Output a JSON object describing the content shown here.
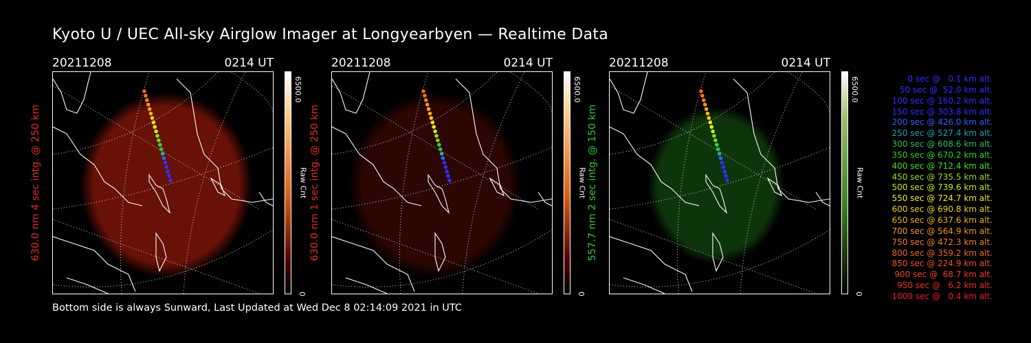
{
  "title": "Kyoto U / UEC All-sky Airglow Imager at Longyearbyen — Realtime Data",
  "footer": "Bottom side is always Sunward, Last Updated at Wed Dec  8 02:14:09 2021 in UTC",
  "panels": [
    {
      "date": "20211208",
      "time": "0214 UT",
      "ylabel": "630.0 nm 4 sec intg. @ 250 km",
      "ylabel_color": "#e03020",
      "cbar_max": "6500.0",
      "cbar_min": "0",
      "cbar_unit": "Raw Cnt",
      "glow_color": "#7a1408",
      "glow_opacity": 0.85
    },
    {
      "date": "20211208",
      "time": "0214 UT",
      "ylabel": "630.0 nm 1 sec intg. @ 250 km",
      "ylabel_color": "#e03020",
      "cbar_max": "6500.0",
      "cbar_min": "0",
      "cbar_unit": "Raw Cnt",
      "glow_color": "#3a0804",
      "glow_opacity": 0.75
    },
    {
      "date": "20211208",
      "time": "0214 UT",
      "ylabel": "557.7 nm 2 sec intg. @ 150 km",
      "ylabel_color": "#30c830",
      "cbar_max": "6500.0",
      "cbar_min": "0",
      "cbar_unit": "Raw Cnt",
      "glow_color": "#0f3a0c",
      "glow_opacity": 0.9
    }
  ],
  "legend": [
    {
      "text": "0 sec @   0.1 km alt.",
      "color": "#3030ff"
    },
    {
      "text": "50 sec @  52.0 km alt.",
      "color": "#3030ff"
    },
    {
      "text": "100 sec @ 160.2 km alt.",
      "color": "#3030ff"
    },
    {
      "text": "150 sec @ 303.8 km alt.",
      "color": "#3030ff"
    },
    {
      "text": "200 sec @ 426.0 km alt.",
      "color": "#3060ff"
    },
    {
      "text": "250 sec @ 527.4 km alt.",
      "color": "#20a0b0"
    },
    {
      "text": "300 sec @ 608.6 km alt.",
      "color": "#20c060"
    },
    {
      "text": "350 sec @ 670.2 km alt.",
      "color": "#30d030"
    },
    {
      "text": "400 sec @ 712.4 km alt.",
      "color": "#40e020"
    },
    {
      "text": "450 sec @ 735.5 km alt.",
      "color": "#90e020"
    },
    {
      "text": "500 sec @ 739.6 km alt.",
      "color": "#c0f020"
    },
    {
      "text": "550 sec @ 724.7 km alt.",
      "color": "#e8f020"
    },
    {
      "text": "600 sec @ 690.8 km alt.",
      "color": "#f0d020"
    },
    {
      "text": "650 sec @ 637.6 km alt.",
      "color": "#f0b020"
    },
    {
      "text": "700 sec @ 564.9 km alt.",
      "color": "#f09820"
    },
    {
      "text": "750 sec @ 472.3 km alt.",
      "color": "#f08020"
    },
    {
      "text": "800 sec @ 359.2 km alt.",
      "color": "#f06820"
    },
    {
      "text": "850 sec @ 224.9 km alt.",
      "color": "#f05020"
    },
    {
      "text": "900 sec @  68.7 km alt.",
      "color": "#f04020"
    },
    {
      "text": "950 sec @   6.2 km alt.",
      "color": "#f03020"
    },
    {
      "text": "1000 sec @   0.4 km alt.",
      "color": "#f02020"
    }
  ]
}
